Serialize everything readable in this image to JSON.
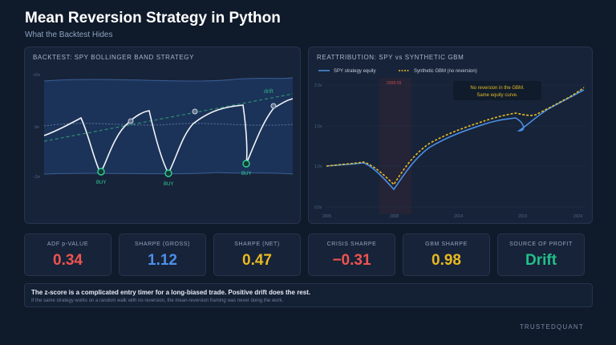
{
  "header": {
    "title": "Mean Reversion Strategy in Python",
    "subtitle": "What the Backtest Hides"
  },
  "left_panel": {
    "title": "BACKTEST: SPY BOLLINGER BAND STRATEGY",
    "y_labels": [
      "+2σ",
      "0σ",
      "−2σ"
    ],
    "drift_label": "drift",
    "buy_labels": [
      "BUY",
      "BUY",
      "BUY"
    ],
    "colors": {
      "band": "#1f3a66",
      "price": "#f2f4f8",
      "drift": "#2fae87",
      "buy": "#2fd39a"
    }
  },
  "right_panel": {
    "title": "REATTRIBUTION: SPY vs SYNTHETIC GBM",
    "legend": [
      {
        "label": "SPY strategy equity",
        "color": "#4a8fe6"
      },
      {
        "label": "Synthetic GBM (no reversion)",
        "color": "#e2bc2b"
      }
    ],
    "crisis_label": "2008-09",
    "callout": [
      "No reversion in the GBM.",
      "Same equity curve."
    ],
    "y_ticks": [
      "2.0x",
      "1.5x",
      "1.0x",
      "0.5x"
    ],
    "x_ticks": [
      "2005",
      "2008",
      "2014",
      "2019",
      "2024"
    ]
  },
  "metrics": [
    {
      "label": "ADF p-VALUE",
      "value": "0.34",
      "color": "#ef5350"
    },
    {
      "label": "SHARPE (GROSS)",
      "value": "1.12",
      "color": "#4c8fe8"
    },
    {
      "label": "SHARPE (NET)",
      "value": "0.47",
      "color": "#e8b923"
    },
    {
      "label": "CRISIS SHARPE",
      "value": "−0.31",
      "color": "#ef5350"
    },
    {
      "label": "GBM SHARPE",
      "value": "0.98",
      "color": "#e8b923"
    },
    {
      "label": "SOURCE OF PROFIT",
      "value": "Drift",
      "color": "#22c08a"
    }
  ],
  "note": {
    "main": "The z-score is a complicated entry timer for a long-biased trade. Positive drift does the rest.",
    "sub": "If the same strategy works on a random walk with no reversion, the mean-reversion framing was never doing the work."
  },
  "brand": "TRUSTEDQUANT"
}
